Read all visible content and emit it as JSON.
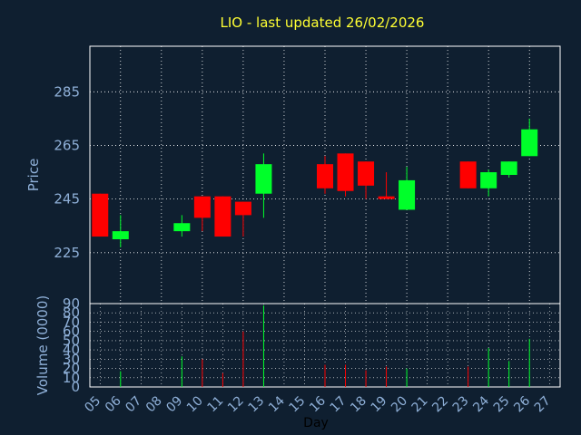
{
  "title": "LIO - last updated 26/02/2026",
  "colors": {
    "background": "#0f1f30",
    "plot_background": "#0f1f30",
    "frame": "#ffffff",
    "grid": "#ffffff",
    "title": "#ffff33",
    "axis_text": "#8fb0d8",
    "xlabel_text": "#000000",
    "up": "#00ff2a",
    "down": "#ff0000"
  },
  "chart_data": [
    {
      "type": "candlestick",
      "ylabel": "Price",
      "ylim": [
        206,
        302
      ],
      "yticks": [
        225,
        245,
        265,
        285
      ],
      "grid": true,
      "candles": [
        {
          "day": "05",
          "open": 247,
          "high": 247,
          "low": 231,
          "close": 231
        },
        {
          "day": "06",
          "open": 230,
          "high": 239,
          "low": 227,
          "close": 233
        },
        {
          "day": "09",
          "open": 233,
          "high": 239,
          "low": 231,
          "close": 236
        },
        {
          "day": "10",
          "open": 246,
          "high": 246,
          "low": 233,
          "close": 238
        },
        {
          "day": "11",
          "open": 246,
          "high": 246,
          "low": 231,
          "close": 231
        },
        {
          "day": "12",
          "open": 244,
          "high": 244,
          "low": 231,
          "close": 239
        },
        {
          "day": "13",
          "open": 247,
          "high": 262,
          "low": 238,
          "close": 258
        },
        {
          "day": "16",
          "open": 258,
          "high": 261,
          "low": 247,
          "close": 249
        },
        {
          "day": "17",
          "open": 262,
          "high": 262,
          "low": 246,
          "close": 248
        },
        {
          "day": "18",
          "open": 259,
          "high": 259,
          "low": 245,
          "close": 250
        },
        {
          "day": "19",
          "open": 246,
          "high": 255,
          "low": 245,
          "close": 245
        },
        {
          "day": "20",
          "open": 241,
          "high": 257,
          "low": 241,
          "close": 252
        },
        {
          "day": "23",
          "open": 259,
          "high": 259,
          "low": 249,
          "close": 249
        },
        {
          "day": "24",
          "open": 249,
          "high": 256,
          "low": 246,
          "close": 255
        },
        {
          "day": "25",
          "open": 254,
          "high": 259,
          "low": 253,
          "close": 259
        },
        {
          "day": "26",
          "open": 261,
          "high": 275,
          "low": 261,
          "close": 271
        }
      ]
    },
    {
      "type": "bar",
      "ylabel": "Volume (0000)",
      "xlabel": "Day",
      "ylim": [
        0,
        90
      ],
      "yticks": [
        0,
        10,
        20,
        30,
        40,
        50,
        60,
        70,
        80,
        90
      ],
      "grid": true,
      "categories": [
        "05",
        "06",
        "07",
        "08",
        "09",
        "10",
        "11",
        "12",
        "13",
        "14",
        "15",
        "16",
        "17",
        "18",
        "19",
        "20",
        "21",
        "22",
        "23",
        "24",
        "25",
        "26",
        "27"
      ],
      "values": [
        0,
        17,
        0,
        0,
        33,
        30,
        15,
        60,
        88,
        0,
        0,
        24,
        24,
        18,
        22,
        20,
        0,
        0,
        22,
        42,
        28,
        52,
        0
      ],
      "direction": [
        "none",
        "up",
        "none",
        "none",
        "up",
        "down",
        "down",
        "down",
        "up",
        "none",
        "none",
        "down",
        "down",
        "down",
        "down",
        "up",
        "none",
        "none",
        "down",
        "up",
        "up",
        "up",
        "none"
      ]
    }
  ]
}
